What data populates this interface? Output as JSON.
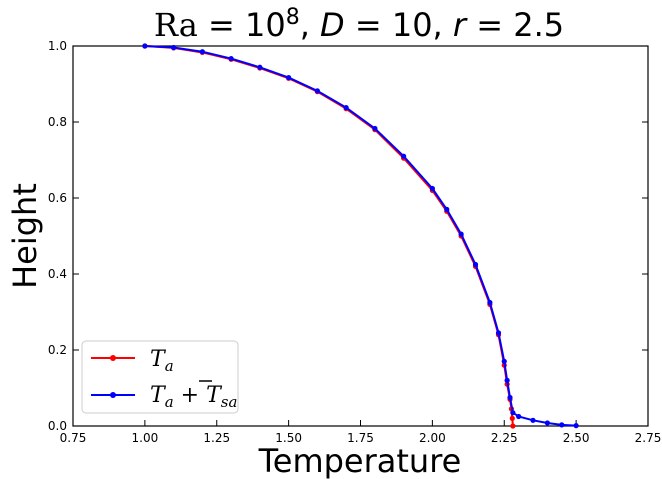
{
  "chart_data": {
    "type": "line",
    "title": "Ra = 10^8, D = 10, r = 2.5",
    "title_parts": {
      "ra_label": "Ra",
      "ra_eq": " = 10",
      "ra_exp": "8",
      "d_label": "D",
      "d_eq": " = 10, ",
      "r_label": "r",
      "r_eq": " = 2.5"
    },
    "xlabel": "Temperature",
    "ylabel": "Height",
    "xlim": [
      0.75,
      2.75
    ],
    "ylim": [
      0.0,
      1.0
    ],
    "xticks": [
      "0.75",
      "1.00",
      "1.25",
      "1.50",
      "1.75",
      "2.00",
      "2.25",
      "2.50",
      "2.75"
    ],
    "yticks": [
      "0.0",
      "0.2",
      "0.4",
      "0.6",
      "0.8",
      "1.0"
    ],
    "grid": false,
    "legend_position": "lower-left",
    "series": [
      {
        "name": "T_a",
        "legend_main": "T",
        "legend_sub": "a",
        "color": "#ff0000",
        "x": [
          1.0,
          1.1,
          1.2,
          1.3,
          1.4,
          1.5,
          1.6,
          1.7,
          1.8,
          1.9,
          2.0,
          2.05,
          2.1,
          2.15,
          2.2,
          2.23,
          2.25,
          2.26,
          2.27,
          2.275,
          2.278,
          2.28
        ],
        "y": [
          1.0,
          0.995,
          0.983,
          0.965,
          0.942,
          0.915,
          0.88,
          0.835,
          0.78,
          0.705,
          0.62,
          0.565,
          0.5,
          0.42,
          0.32,
          0.24,
          0.16,
          0.11,
          0.07,
          0.045,
          0.02,
          0.0
        ]
      },
      {
        "name": "T_a + T̄_sa",
        "legend_main": "T",
        "legend_sub": "a",
        "legend_plus": " + ",
        "legend_main2": "T",
        "legend_sub2": "sa",
        "color": "#0000ff",
        "x": [
          1.0,
          1.1,
          1.2,
          1.3,
          1.4,
          1.5,
          1.6,
          1.7,
          1.8,
          1.9,
          2.0,
          2.05,
          2.1,
          2.15,
          2.2,
          2.23,
          2.25,
          2.26,
          2.27,
          2.28,
          2.3,
          2.35,
          2.4,
          2.45,
          2.5
        ],
        "y": [
          1.0,
          0.996,
          0.985,
          0.967,
          0.944,
          0.917,
          0.882,
          0.838,
          0.783,
          0.71,
          0.625,
          0.57,
          0.505,
          0.425,
          0.325,
          0.245,
          0.17,
          0.12,
          0.075,
          0.035,
          0.025,
          0.015,
          0.008,
          0.003,
          0.001
        ]
      }
    ]
  }
}
